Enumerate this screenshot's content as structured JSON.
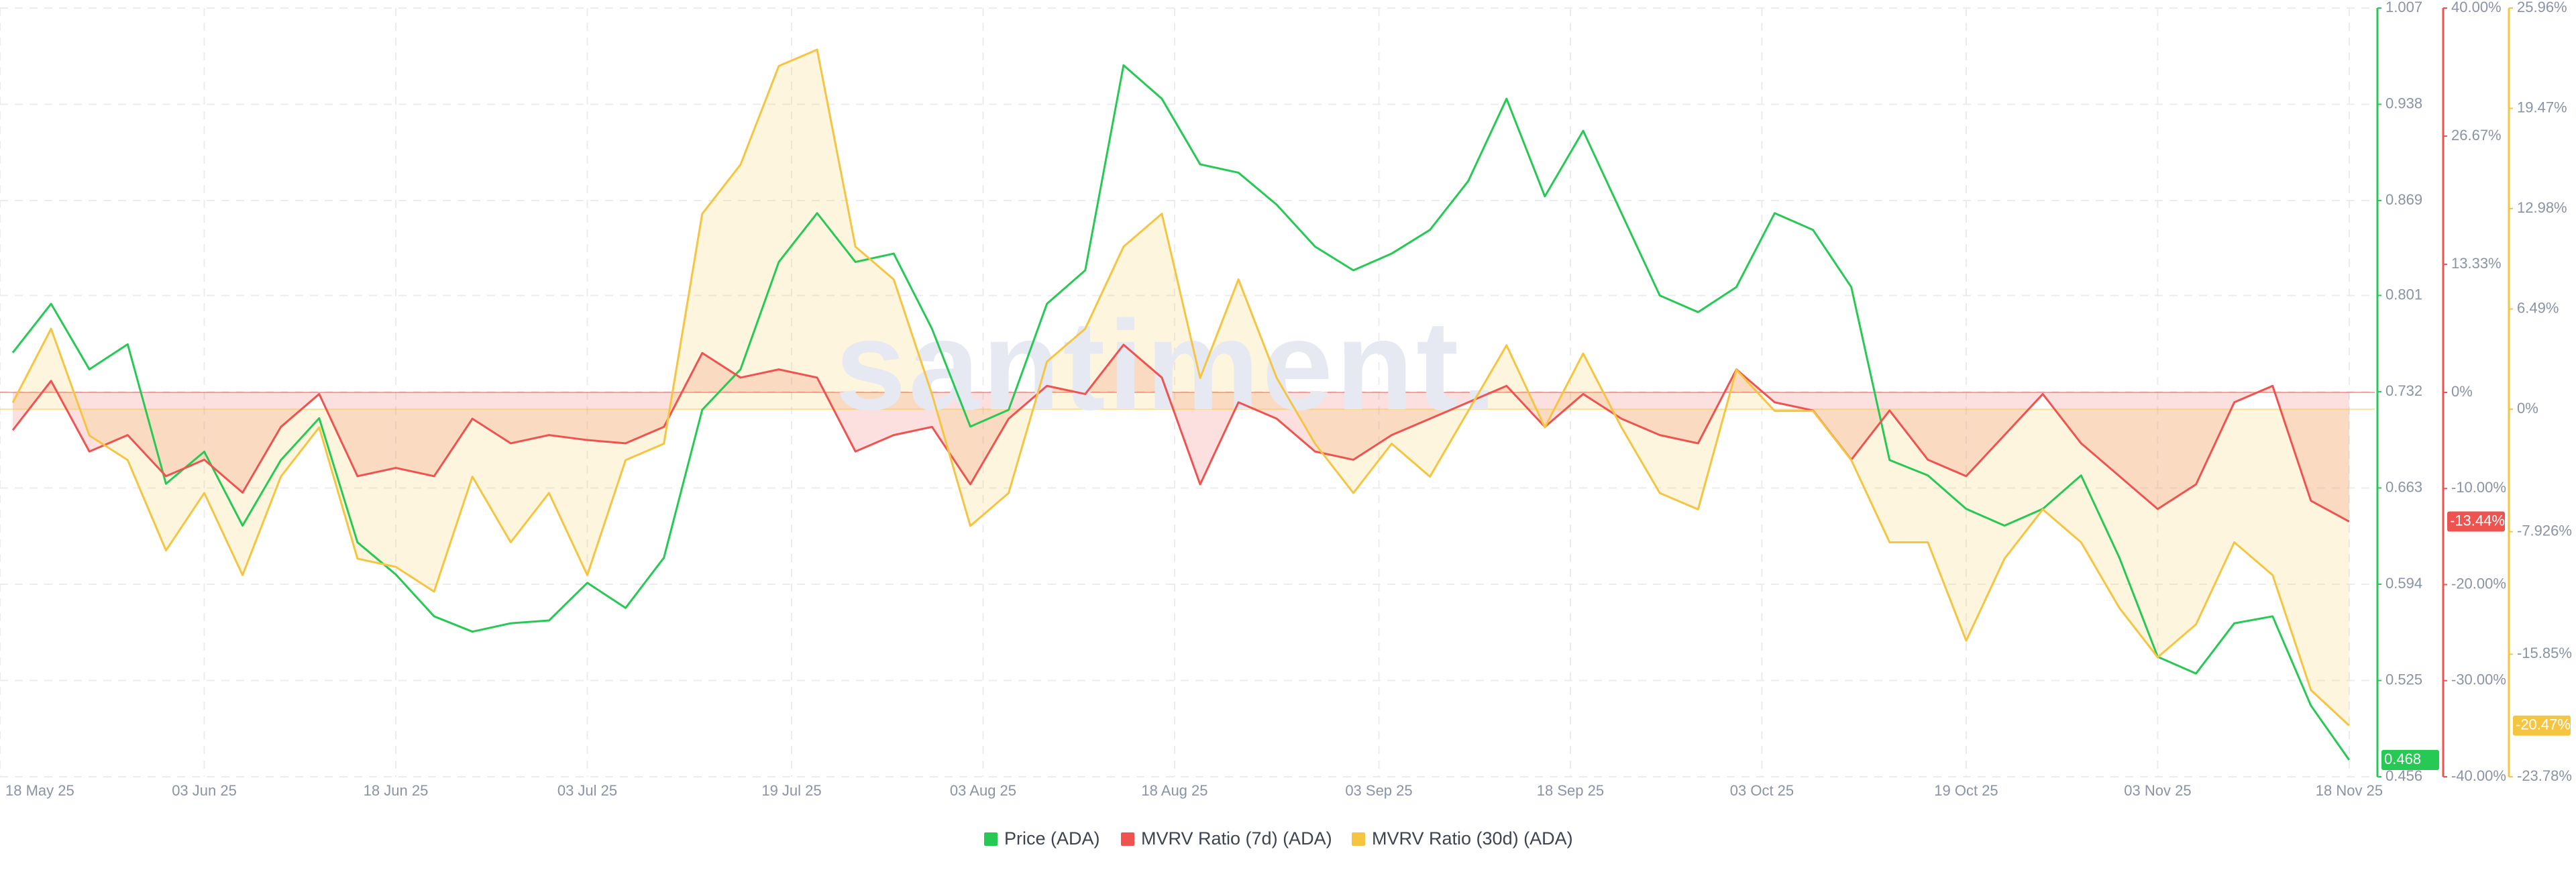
{
  "chart_data": {
    "type": "line",
    "watermark": "santiment.",
    "grid": true,
    "x": [
      "2025-05-19",
      "2025-05-22",
      "2025-05-25",
      "2025-05-28",
      "2025-05-31",
      "2025-06-03",
      "2025-06-06",
      "2025-06-09",
      "2025-06-12",
      "2025-06-15",
      "2025-06-18",
      "2025-06-21",
      "2025-06-24",
      "2025-06-27",
      "2025-06-30",
      "2025-07-03",
      "2025-07-06",
      "2025-07-09",
      "2025-07-12",
      "2025-07-15",
      "2025-07-18",
      "2025-07-21",
      "2025-07-24",
      "2025-07-27",
      "2025-07-30",
      "2025-08-02",
      "2025-08-05",
      "2025-08-08",
      "2025-08-11",
      "2025-08-14",
      "2025-08-17",
      "2025-08-20",
      "2025-08-23",
      "2025-08-26",
      "2025-08-29",
      "2025-09-01",
      "2025-09-04",
      "2025-09-07",
      "2025-09-10",
      "2025-09-13",
      "2025-09-16",
      "2025-09-19",
      "2025-09-22",
      "2025-09-25",
      "2025-09-28",
      "2025-10-01",
      "2025-10-04",
      "2025-10-07",
      "2025-10-10",
      "2025-10-13",
      "2025-10-16",
      "2025-10-19",
      "2025-10-22",
      "2025-10-25",
      "2025-10-28",
      "2025-10-31",
      "2025-11-03",
      "2025-11-06",
      "2025-11-09",
      "2025-11-12",
      "2025-11-15",
      "2025-11-18"
    ],
    "xlim": [
      "2025-05-18",
      "2025-11-20"
    ],
    "xticks": [
      {
        "value": "2025-05-18",
        "label": "18 May 25"
      },
      {
        "value": "2025-06-03",
        "label": "03 Jun 25"
      },
      {
        "value": "2025-06-18",
        "label": "18 Jun 25"
      },
      {
        "value": "2025-07-03",
        "label": "03 Jul 25"
      },
      {
        "value": "2025-07-19",
        "label": "19 Jul 25"
      },
      {
        "value": "2025-08-03",
        "label": "03 Aug 25"
      },
      {
        "value": "2025-08-18",
        "label": "18 Aug 25"
      },
      {
        "value": "2025-09-03",
        "label": "03 Sep 25"
      },
      {
        "value": "2025-09-18",
        "label": "18 Sep 25"
      },
      {
        "value": "2025-10-03",
        "label": "03 Oct 25"
      },
      {
        "value": "2025-10-19",
        "label": "19 Oct 25"
      },
      {
        "value": "2025-11-03",
        "label": "03 Nov 25"
      },
      {
        "value": "2025-11-18",
        "label": "18 Nov 25"
      }
    ],
    "ylim": [
      0.456,
      1.007
    ],
    "yticks": [
      0.456,
      0.525,
      0.594,
      0.663,
      0.732,
      0.801,
      0.869,
      0.938,
      1.007
    ],
    "y2lim": [
      -40,
      40
    ],
    "y2ticks": [
      {
        "value": 40,
        "label": "40.00%"
      },
      {
        "value": 26.67,
        "label": "26.67%"
      },
      {
        "value": 13.33,
        "label": "13.33%"
      },
      {
        "value": 0,
        "label": "0%"
      },
      {
        "value": -10,
        "label": "-10.00%"
      },
      {
        "value": -20,
        "label": "-20.00%"
      },
      {
        "value": -30,
        "label": "-30.00%"
      },
      {
        "value": -40,
        "label": "-40.00%"
      }
    ],
    "y3lim": [
      -23.78,
      25.96
    ],
    "y3ticks": [
      {
        "value": 25.96,
        "label": "25.96%"
      },
      {
        "value": 19.47,
        "label": "19.47%"
      },
      {
        "value": 12.98,
        "label": "12.98%"
      },
      {
        "value": 6.49,
        "label": "6.49%"
      },
      {
        "value": 0,
        "label": "0%"
      },
      {
        "value": -7.926,
        "label": "-7.926%"
      },
      {
        "value": -15.85,
        "label": "-15.85%"
      },
      {
        "value": -23.78,
        "label": "-23.78%"
      }
    ],
    "series": [
      {
        "name": "Price (ADA)",
        "color": "#26c953",
        "axis": "y",
        "values": [
          0.76,
          0.795,
          0.748,
          0.766,
          0.666,
          0.689,
          0.636,
          0.683,
          0.713,
          0.624,
          0.601,
          0.571,
          0.56,
          0.566,
          0.568,
          0.595,
          0.577,
          0.613,
          0.719,
          0.748,
          0.825,
          0.86,
          0.825,
          0.831,
          0.777,
          0.707,
          0.719,
          0.795,
          0.819,
          0.966,
          0.942,
          0.895,
          0.889,
          0.866,
          0.836,
          0.819,
          0.831,
          0.848,
          0.883,
          0.942,
          0.872,
          0.919,
          0.86,
          0.801,
          0.789,
          0.807,
          0.86,
          0.848,
          0.807,
          0.683,
          0.672,
          0.648,
          0.636,
          0.648,
          0.672,
          0.613,
          0.542,
          0.53,
          0.566,
          0.571,
          0.507,
          0.468
        ]
      },
      {
        "name": "MVRV Ratio (7d) (ADA)",
        "color": "#ef5350",
        "axis": "y2",
        "area": true,
        "last_value_label": "-13.44%",
        "values": [
          -3.93,
          1.2,
          -6.15,
          -4.44,
          -8.72,
          -7.01,
          -10.43,
          -3.59,
          -0.17,
          -8.72,
          -7.86,
          -8.72,
          -2.74,
          -5.3,
          -4.44,
          -4.96,
          -5.3,
          -3.59,
          4.1,
          1.54,
          2.39,
          1.54,
          -6.15,
          -4.44,
          -3.59,
          -9.57,
          -2.74,
          0.68,
          -0.17,
          4.96,
          1.54,
          -9.57,
          -1.03,
          -2.74,
          -6.15,
          -7.01,
          -4.44,
          -2.74,
          -1.03,
          0.68,
          -3.59,
          -0.17,
          -2.74,
          -4.44,
          -5.3,
          2.39,
          -1.03,
          -1.88,
          -7.01,
          -1.88,
          -7.01,
          -8.72,
          -4.44,
          -0.17,
          -5.3,
          -8.72,
          -12.14,
          -9.57,
          -1.03,
          0.68,
          -11.28,
          -13.44
        ]
      },
      {
        "name": "MVRV Ratio (30d) (ADA)",
        "color": "#f5c542",
        "axis": "y3",
        "area": true,
        "last_value_label": "-20.47%",
        "values": [
          0.43,
          5.21,
          -1.7,
          -3.29,
          -9.14,
          -5.42,
          -10.73,
          -4.36,
          -1.17,
          -9.67,
          -10.2,
          -11.8,
          -4.36,
          -8.61,
          -5.42,
          -10.73,
          -3.29,
          -2.23,
          12.65,
          15.83,
          22.21,
          23.27,
          10.52,
          8.4,
          0.96,
          -7.55,
          -5.42,
          3.08,
          5.21,
          10.52,
          12.65,
          2.02,
          8.4,
          2.02,
          -2.23,
          -5.42,
          -2.23,
          -4.36,
          -0.11,
          4.14,
          -1.17,
          3.61,
          -1.17,
          -5.42,
          -6.48,
          2.55,
          -0.11,
          -0.11,
          -3.29,
          -8.61,
          -8.61,
          -14.98,
          -9.67,
          -6.48,
          -8.61,
          -12.86,
          -16.05,
          -13.92,
          -8.61,
          -10.73,
          -18.17,
          -20.47
        ]
      }
    ]
  }
}
